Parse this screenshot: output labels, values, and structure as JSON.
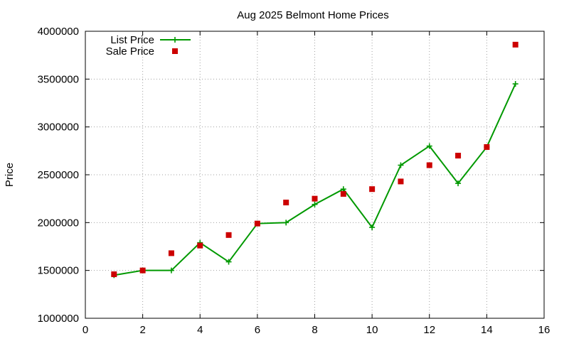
{
  "chart_data": {
    "type": "line",
    "title": "Aug 2025 Belmont Home Prices",
    "xlabel": "",
    "ylabel": "Price",
    "xlim": [
      0,
      16
    ],
    "ylim": [
      1000000,
      4000000
    ],
    "xticks": [
      0,
      2,
      4,
      6,
      8,
      10,
      12,
      14,
      16
    ],
    "yticks": [
      1000000,
      1500000,
      2000000,
      2500000,
      3000000,
      3500000,
      4000000
    ],
    "grid": true,
    "legend_position": "top-left",
    "series": [
      {
        "name": "List Price",
        "style": "linespoints",
        "color": "#009900",
        "marker": "plus",
        "x": [
          1,
          2,
          3,
          4,
          5,
          6,
          7,
          8,
          9,
          10,
          11,
          12,
          13,
          14,
          15
        ],
        "y": [
          1450000,
          1500000,
          1500000,
          1790000,
          1590000,
          1990000,
          2000000,
          2190000,
          2350000,
          1950000,
          2600000,
          2800000,
          2410000,
          2790000,
          3450000
        ]
      },
      {
        "name": "Sale Price",
        "style": "points",
        "color": "#cc0000",
        "marker": "square",
        "x": [
          1,
          2,
          3,
          4,
          5,
          6,
          7,
          8,
          9,
          10,
          11,
          12,
          13,
          14,
          15
        ],
        "y": [
          1460000,
          1500000,
          1680000,
          1760000,
          1870000,
          1990000,
          2210000,
          2250000,
          2300000,
          2350000,
          2430000,
          2600000,
          2700000,
          2790000,
          3860000
        ]
      }
    ]
  }
}
